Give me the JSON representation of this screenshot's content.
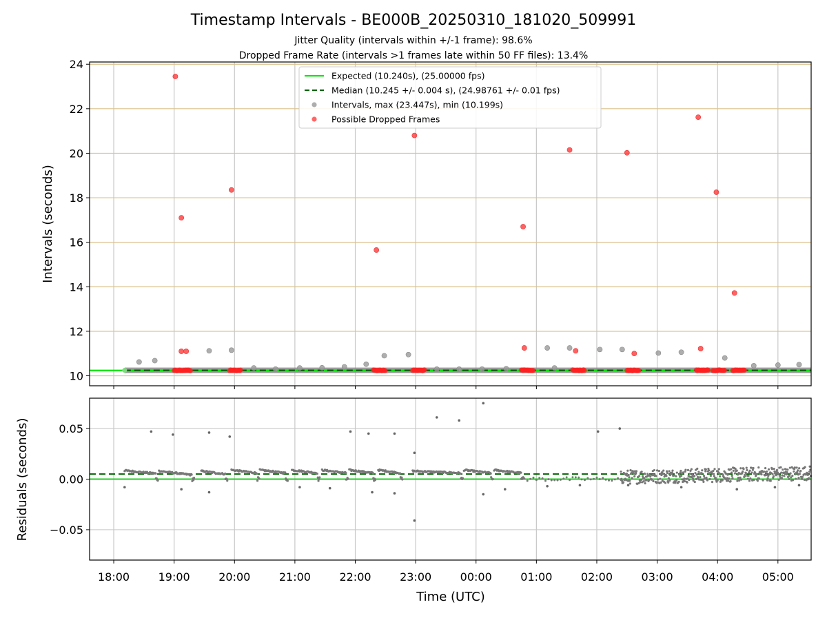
{
  "chart_data": {
    "type": "scatter",
    "title": "Timestamp Intervals - BE000B_20250310_181020_509991",
    "subtitle_lines": [
      "Jitter Quality (intervals within +/-1 frame): 98.6%",
      "Dropped Frame Rate (intervals >1 frames late within 50 FF files): 13.4%"
    ],
    "x_axis": {
      "label": "Time (UTC)",
      "unit": "hours since 18:00 UTC",
      "range": [
        -0.4,
        11.55
      ],
      "ticks": [
        {
          "value": 0,
          "label": "18:00"
        },
        {
          "value": 1,
          "label": "19:00"
        },
        {
          "value": 2,
          "label": "20:00"
        },
        {
          "value": 3,
          "label": "21:00"
        },
        {
          "value": 4,
          "label": "22:00"
        },
        {
          "value": 5,
          "label": "23:00"
        },
        {
          "value": 6,
          "label": "00:00"
        },
        {
          "value": 7,
          "label": "01:00"
        },
        {
          "value": 8,
          "label": "02:00"
        },
        {
          "value": 9,
          "label": "03:00"
        },
        {
          "value": 10,
          "label": "04:00"
        },
        {
          "value": 11,
          "label": "05:00"
        }
      ]
    },
    "top_panel": {
      "ylabel": "Intervals (seconds)",
      "ylim": [
        9.55,
        24.1
      ],
      "yticks": [
        10,
        12,
        14,
        16,
        18,
        20,
        22,
        24
      ],
      "expected": 10.24,
      "median": 10.245,
      "data_start_x": 0.18,
      "legend": [
        {
          "label": "Expected (10.240s), (25.00000 fps)",
          "kind": "line",
          "color": "#00e600"
        },
        {
          "label": "Median (10.245 +/- 0.004 s), (24.98761 +/- 0.01 fps)",
          "kind": "dashed",
          "color": "#006400"
        },
        {
          "label": "Intervals, max (23.447s), min (10.199s)",
          "kind": "dot",
          "color": "#9a9a9a"
        },
        {
          "label": "Possible Dropped Frames",
          "kind": "dot",
          "color": "#ff4040"
        }
      ],
      "gray_points": [
        [
          0.42,
          10.62
        ],
        [
          0.68,
          10.68
        ],
        [
          1.58,
          11.12
        ],
        [
          1.95,
          11.15
        ],
        [
          2.32,
          10.35
        ],
        [
          2.68,
          10.3
        ],
        [
          3.08,
          10.35
        ],
        [
          3.45,
          10.36
        ],
        [
          3.82,
          10.4
        ],
        [
          4.18,
          10.52
        ],
        [
          4.48,
          10.9
        ],
        [
          4.88,
          10.95
        ],
        [
          5.35,
          10.3
        ],
        [
          5.72,
          10.3
        ],
        [
          6.1,
          10.3
        ],
        [
          6.5,
          10.32
        ],
        [
          7.18,
          11.25
        ],
        [
          7.3,
          10.35
        ],
        [
          7.55,
          11.25
        ],
        [
          8.05,
          11.18
        ],
        [
          8.42,
          11.18
        ],
        [
          9.02,
          11.02
        ],
        [
          9.4,
          11.06
        ],
        [
          10.12,
          10.8
        ],
        [
          10.6,
          10.45
        ],
        [
          11.0,
          10.48
        ],
        [
          11.35,
          10.5
        ]
      ],
      "dropped_points": [
        [
          1.02,
          23.45
        ],
        [
          1.12,
          17.1
        ],
        [
          1.12,
          11.1
        ],
        [
          1.2,
          11.1
        ],
        [
          1.95,
          18.35
        ],
        [
          4.35,
          15.65
        ],
        [
          4.98,
          20.8
        ],
        [
          6.78,
          16.7
        ],
        [
          6.8,
          11.25
        ],
        [
          7.55,
          20.15
        ],
        [
          7.65,
          11.12
        ],
        [
          8.5,
          20.02
        ],
        [
          8.62,
          11.0
        ],
        [
          9.68,
          21.62
        ],
        [
          9.72,
          11.22
        ],
        [
          9.98,
          18.25
        ],
        [
          10.28,
          13.72
        ]
      ],
      "dropped_clusters": [
        [
          1.0,
          1.28
        ],
        [
          1.92,
          2.1
        ],
        [
          4.3,
          4.5
        ],
        [
          4.95,
          5.15
        ],
        [
          6.75,
          6.95
        ],
        [
          7.6,
          7.8
        ],
        [
          8.5,
          8.7
        ],
        [
          9.65,
          9.85
        ],
        [
          9.92,
          10.12
        ],
        [
          10.25,
          10.45
        ]
      ]
    },
    "bottom_panel": {
      "ylabel": "Residuals (seconds)",
      "ylim": [
        -0.08,
        0.08
      ],
      "yticks": [
        -0.05,
        0.0,
        0.05
      ],
      "ytick_labels": [
        "−0.05",
        "0.00",
        "0.05"
      ],
      "expected_residual": 0.0,
      "median_residual": 0.005,
      "outlier_points": [
        [
          0.18,
          -0.008
        ],
        [
          0.62,
          0.047
        ],
        [
          0.98,
          0.044
        ],
        [
          1.12,
          -0.01
        ],
        [
          1.58,
          0.046
        ],
        [
          1.58,
          -0.013
        ],
        [
          1.92,
          0.042
        ],
        [
          3.08,
          -0.008
        ],
        [
          3.58,
          -0.009
        ],
        [
          3.92,
          0.047
        ],
        [
          4.22,
          0.045
        ],
        [
          4.28,
          -0.013
        ],
        [
          4.65,
          0.045
        ],
        [
          4.65,
          -0.014
        ],
        [
          4.98,
          0.026
        ],
        [
          4.98,
          -0.041
        ],
        [
          5.35,
          0.061
        ],
        [
          5.72,
          0.058
        ],
        [
          6.12,
          0.075
        ],
        [
          6.12,
          -0.015
        ],
        [
          6.48,
          -0.01
        ],
        [
          7.18,
          -0.007
        ],
        [
          7.72,
          -0.006
        ],
        [
          8.02,
          0.047
        ],
        [
          8.38,
          0.05
        ],
        [
          8.52,
          -0.006
        ],
        [
          9.4,
          -0.008
        ],
        [
          10.32,
          -0.01
        ],
        [
          10.95,
          -0.008
        ],
        [
          11.35,
          -0.006
        ]
      ],
      "band_segments": [
        [
          0.18,
          0.7,
          0.0085,
          0.0055
        ],
        [
          0.75,
          1.3,
          0.008,
          0.004
        ],
        [
          1.45,
          1.85,
          0.008,
          0.005
        ],
        [
          1.95,
          2.38,
          0.009,
          0.006
        ],
        [
          2.42,
          2.85,
          0.009,
          0.006
        ],
        [
          2.95,
          3.38,
          0.009,
          0.006
        ],
        [
          3.45,
          3.85,
          0.009,
          0.006
        ],
        [
          3.9,
          4.3,
          0.009,
          0.006
        ],
        [
          4.38,
          4.75,
          0.009,
          0.006
        ],
        [
          4.95,
          5.75,
          0.008,
          0.006
        ],
        [
          5.8,
          6.25,
          0.009,
          0.006
        ],
        [
          6.3,
          6.75,
          0.009,
          0.006
        ]
      ],
      "noisy_region": [
        8.4,
        11.55
      ]
    }
  }
}
